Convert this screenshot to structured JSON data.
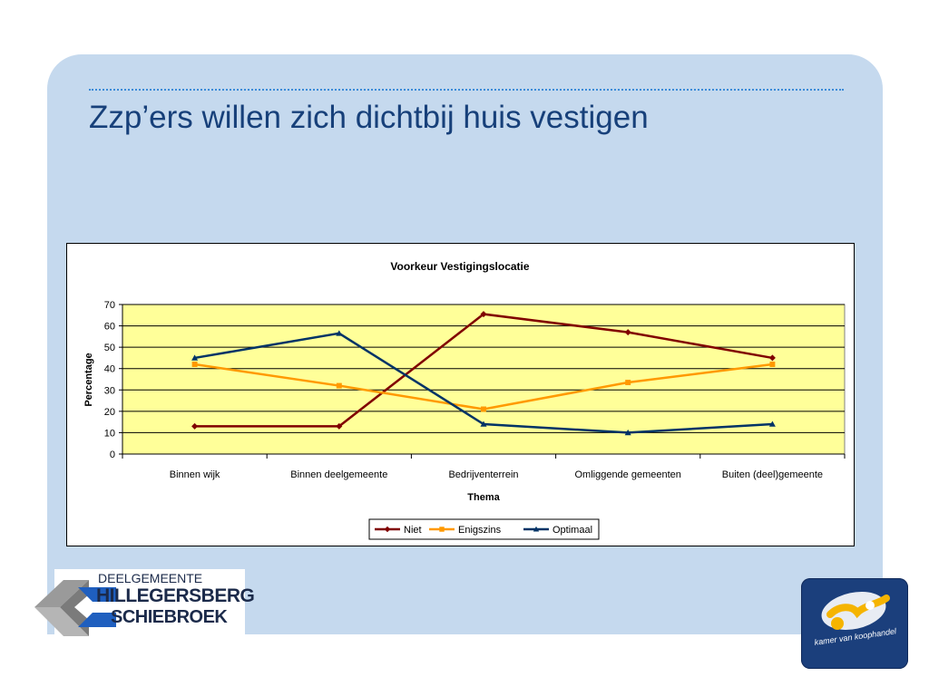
{
  "slide": {
    "title": "Zzp’ers willen zich dichtbij huis vestigen"
  },
  "colors": {
    "panel": "#c5d9ee",
    "title": "#17407a",
    "plot_area": "#ffff99",
    "niet": "#800000",
    "enigszins": "#ff9900",
    "optimaal": "#003366"
  },
  "chart_data": {
    "type": "line",
    "title": "Voorkeur Vestigingslocatie",
    "xlabel": "Thema",
    "ylabel": "Percentage",
    "categories": [
      "Binnen wijk",
      "Binnen deelgemeente",
      "Bedrijventerrein",
      "Omliggende gemeenten",
      "Buiten (deel)gemeente"
    ],
    "ylim": [
      0,
      70
    ],
    "yticks": [
      0,
      10,
      20,
      30,
      40,
      50,
      60,
      70
    ],
    "grid": true,
    "legend_position": "bottom",
    "series": [
      {
        "name": "Niet",
        "color": "#800000",
        "marker": "diamond",
        "values": [
          13,
          13,
          65.5,
          57,
          45
        ]
      },
      {
        "name": "Enigszins",
        "color": "#ff9900",
        "marker": "square",
        "values": [
          42,
          32,
          21,
          33.5,
          42
        ]
      },
      {
        "name": "Optimaal",
        "color": "#003366",
        "marker": "triangle",
        "values": [
          45,
          56.5,
          14,
          10,
          14
        ]
      }
    ]
  },
  "logos": {
    "left": {
      "line1": "DEELGEMEENTE",
      "line2": "HILLEGERSBERG",
      "line3": "SCHIEBROEK",
      "icon": "cube-arrow-logo"
    },
    "right": {
      "text": "kamer van koophandel",
      "icon": "kvk-logo"
    }
  }
}
